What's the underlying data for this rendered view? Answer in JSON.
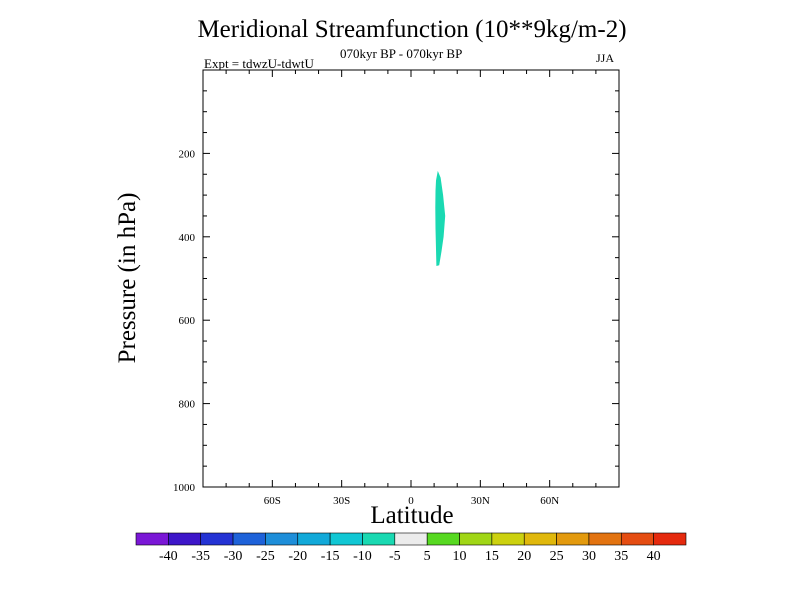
{
  "chart_data": {
    "type": "contour",
    "title": "Meridional Streamfunction (10**9kg/m-2)",
    "subtitle": "070kyr BP - 070kyr BP",
    "experiment": "Expt = tdwzU-tdwtU",
    "season": "JJA",
    "xlabel": "Latitude",
    "ylabel": "Pressure (in hPa)",
    "xlim": [
      -90,
      90
    ],
    "ylim": [
      1000,
      0
    ],
    "x_ticks": [
      {
        "value": -60,
        "label": "60S"
      },
      {
        "value": -30,
        "label": "30S"
      },
      {
        "value": 0,
        "label": "0"
      },
      {
        "value": 30,
        "label": "30N"
      },
      {
        "value": 60,
        "label": "60N"
      }
    ],
    "y_ticks": [
      {
        "value": 200,
        "label": "200"
      },
      {
        "value": 400,
        "label": "400"
      },
      {
        "value": 600,
        "label": "600"
      },
      {
        "value": 800,
        "label": "800"
      },
      {
        "value": 1000,
        "label": "1000"
      }
    ],
    "colorbar": {
      "labels": [
        "-40",
        "-35",
        "-30",
        "-25",
        "-20",
        "-15",
        "-10",
        "-5",
        "5",
        "10",
        "15",
        "20",
        "25",
        "30",
        "35",
        "40"
      ],
      "colors": [
        "#7a17d6",
        "#3d16c9",
        "#2433d4",
        "#1e62d9",
        "#1e8ed9",
        "#12a9d9",
        "#11c7d4",
        "#1ad9b2",
        "#ececec",
        "#57d921",
        "#a0d616",
        "#ccd10f",
        "#e0b80c",
        "#e39a0e",
        "#e27310",
        "#e54d12",
        "#e52a0e"
      ]
    },
    "shaded_region": {
      "bin": "-10 to -5",
      "color": "#1ad9b2",
      "outline": [
        {
          "lat": 10.8,
          "p": 265
        },
        {
          "lat": 11.6,
          "p": 242
        },
        {
          "lat": 12.8,
          "p": 258
        },
        {
          "lat": 13.9,
          "p": 300
        },
        {
          "lat": 14.8,
          "p": 350
        },
        {
          "lat": 14.1,
          "p": 400
        },
        {
          "lat": 13.2,
          "p": 435
        },
        {
          "lat": 12.2,
          "p": 468
        },
        {
          "lat": 11.0,
          "p": 470
        },
        {
          "lat": 10.8,
          "p": 430
        },
        {
          "lat": 10.6,
          "p": 380
        },
        {
          "lat": 10.5,
          "p": 330
        },
        {
          "lat": 10.6,
          "p": 290
        }
      ]
    }
  }
}
